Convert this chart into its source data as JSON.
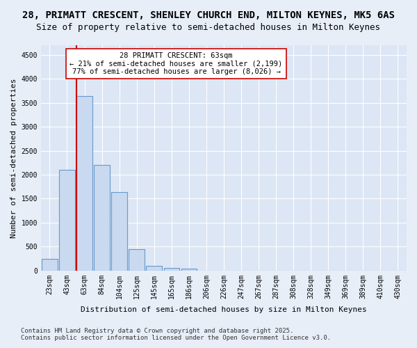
{
  "title_line1": "28, PRIMATT CRESCENT, SHENLEY CHURCH END, MILTON KEYNES, MK5 6AS",
  "title_line2": "Size of property relative to semi-detached houses in Milton Keynes",
  "xlabel": "Distribution of semi-detached houses by size in Milton Keynes",
  "ylabel": "Number of semi-detached properties",
  "categories": [
    "23sqm",
    "43sqm",
    "63sqm",
    "84sqm",
    "104sqm",
    "125sqm",
    "145sqm",
    "165sqm",
    "186sqm",
    "206sqm",
    "226sqm",
    "247sqm",
    "267sqm",
    "287sqm",
    "308sqm",
    "328sqm",
    "349sqm",
    "369sqm",
    "389sqm",
    "410sqm",
    "430sqm"
  ],
  "values": [
    250,
    2100,
    3640,
    2200,
    1640,
    440,
    105,
    60,
    45,
    0,
    0,
    0,
    0,
    0,
    0,
    0,
    0,
    0,
    0,
    0,
    0
  ],
  "bar_color": "#c9d9f0",
  "bar_edge_color": "#6699cc",
  "vline_index": 2,
  "vline_color": "#cc0000",
  "annotation_title": "28 PRIMATT CRESCENT: 63sqm",
  "annotation_line1": "← 21% of semi-detached houses are smaller (2,199)",
  "annotation_line2": "77% of semi-detached houses are larger (8,026) →",
  "annotation_box_color": "#ffffff",
  "annotation_box_edge": "#cc0000",
  "ylim": [
    0,
    4700
  ],
  "yticks": [
    0,
    500,
    1000,
    1500,
    2000,
    2500,
    3000,
    3500,
    4000,
    4500
  ],
  "footer_line1": "Contains HM Land Registry data © Crown copyright and database right 2025.",
  "footer_line2": "Contains public sector information licensed under the Open Government Licence v3.0.",
  "bg_color": "#e8eef8",
  "plot_bg_color": "#dce6f5",
  "title_fontsize": 10,
  "subtitle_fontsize": 9,
  "axis_label_fontsize": 8,
  "tick_fontsize": 7,
  "footer_fontsize": 6.5
}
